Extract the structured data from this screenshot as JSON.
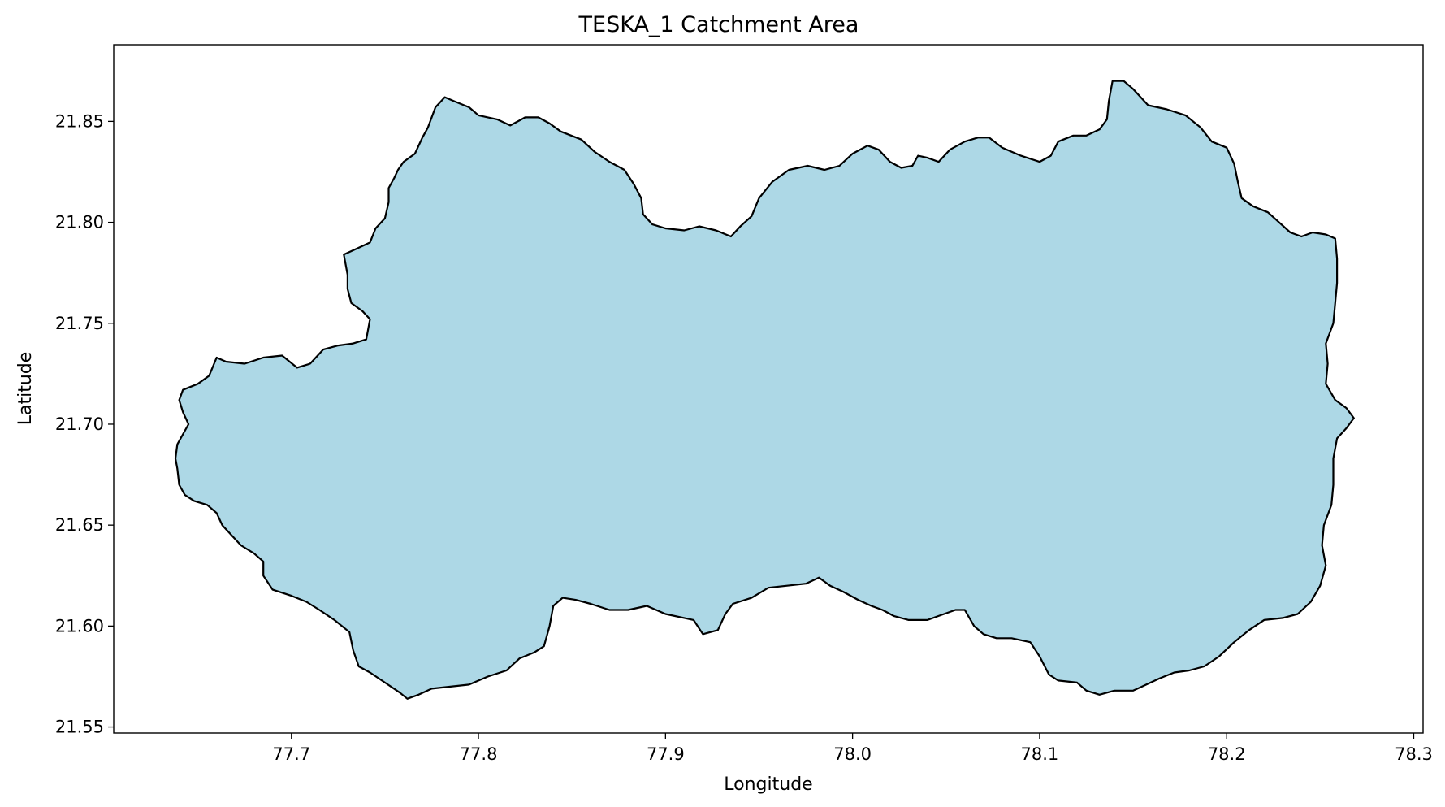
{
  "chart_data": {
    "type": "map",
    "title": "TESKA_1 Catchment Area",
    "xlabel": "Longitude",
    "ylabel": "Latitude",
    "xlim": [
      77.605,
      78.305
    ],
    "ylim": [
      21.547,
      21.888
    ],
    "xticks": [
      77.7,
      77.8,
      77.9,
      78.0,
      78.1,
      78.2,
      78.3
    ],
    "xtick_labels": [
      "77.7",
      "77.8",
      "77.9",
      "78.0",
      "78.1",
      "78.2",
      "78.3"
    ],
    "yticks": [
      21.55,
      21.6,
      21.65,
      21.7,
      21.75,
      21.8,
      21.85
    ],
    "ytick_labels": [
      "21.55",
      "21.60",
      "21.65",
      "21.70",
      "21.75",
      "21.80",
      "21.85"
    ],
    "grid": false,
    "fill_color": "#add8e6",
    "edge_color": "#000000",
    "polygon_lonlat": [
      [
        77.787,
        21.86
      ],
      [
        77.795,
        21.857
      ],
      [
        77.8,
        21.853
      ],
      [
        77.81,
        21.851
      ],
      [
        77.817,
        21.848
      ],
      [
        77.825,
        21.852
      ],
      [
        77.832,
        21.852
      ],
      [
        77.838,
        21.849
      ],
      [
        77.844,
        21.845
      ],
      [
        77.855,
        21.841
      ],
      [
        77.862,
        21.835
      ],
      [
        77.87,
        21.83
      ],
      [
        77.878,
        21.826
      ],
      [
        77.883,
        21.819
      ],
      [
        77.887,
        21.812
      ],
      [
        77.888,
        21.804
      ],
      [
        77.893,
        21.799
      ],
      [
        77.9,
        21.797
      ],
      [
        77.91,
        21.796
      ],
      [
        77.918,
        21.798
      ],
      [
        77.927,
        21.796
      ],
      [
        77.935,
        21.793
      ],
      [
        77.94,
        21.798
      ],
      [
        77.946,
        21.803
      ],
      [
        77.95,
        21.812
      ],
      [
        77.957,
        21.82
      ],
      [
        77.966,
        21.826
      ],
      [
        77.976,
        21.828
      ],
      [
        77.985,
        21.826
      ],
      [
        77.993,
        21.828
      ],
      [
        78.0,
        21.834
      ],
      [
        78.008,
        21.838
      ],
      [
        78.014,
        21.836
      ],
      [
        78.02,
        21.83
      ],
      [
        78.026,
        21.827
      ],
      [
        78.032,
        21.828
      ],
      [
        78.035,
        21.833
      ],
      [
        78.04,
        21.832
      ],
      [
        78.046,
        21.83
      ],
      [
        78.052,
        21.836
      ],
      [
        78.06,
        21.84
      ],
      [
        78.067,
        21.842
      ],
      [
        78.073,
        21.842
      ],
      [
        78.08,
        21.837
      ],
      [
        78.09,
        21.833
      ],
      [
        78.1,
        21.83
      ],
      [
        78.106,
        21.833
      ],
      [
        78.11,
        21.84
      ],
      [
        78.118,
        21.843
      ],
      [
        78.125,
        21.843
      ],
      [
        78.132,
        21.846
      ],
      [
        78.136,
        21.851
      ],
      [
        78.137,
        21.86
      ],
      [
        78.139,
        21.87
      ],
      [
        78.145,
        21.87
      ],
      [
        78.15,
        21.866
      ],
      [
        78.158,
        21.858
      ],
      [
        78.168,
        21.856
      ],
      [
        78.178,
        21.853
      ],
      [
        78.186,
        21.847
      ],
      [
        78.192,
        21.84
      ],
      [
        78.2,
        21.837
      ],
      [
        78.204,
        21.829
      ],
      [
        78.206,
        21.82
      ],
      [
        78.208,
        21.812
      ],
      [
        78.214,
        21.808
      ],
      [
        78.222,
        21.805
      ],
      [
        78.228,
        21.8
      ],
      [
        78.234,
        21.795
      ],
      [
        78.24,
        21.793
      ],
      [
        78.246,
        21.795
      ],
      [
        78.253,
        21.794
      ],
      [
        78.258,
        21.792
      ],
      [
        78.259,
        21.782
      ],
      [
        78.259,
        21.77
      ],
      [
        78.258,
        21.76
      ],
      [
        78.257,
        21.75
      ],
      [
        78.253,
        21.74
      ],
      [
        78.254,
        21.73
      ],
      [
        78.253,
        21.72
      ],
      [
        78.258,
        21.712
      ],
      [
        78.264,
        21.708
      ],
      [
        78.268,
        21.703
      ],
      [
        78.264,
        21.698
      ],
      [
        78.259,
        21.693
      ],
      [
        78.257,
        21.683
      ],
      [
        78.257,
        21.67
      ],
      [
        78.256,
        21.66
      ],
      [
        78.252,
        21.65
      ],
      [
        78.251,
        21.64
      ],
      [
        78.253,
        21.63
      ],
      [
        78.25,
        21.62
      ],
      [
        78.245,
        21.612
      ],
      [
        78.238,
        21.606
      ],
      [
        78.23,
        21.604
      ],
      [
        78.22,
        21.603
      ],
      [
        78.212,
        21.598
      ],
      [
        78.204,
        21.592
      ],
      [
        78.196,
        21.585
      ],
      [
        78.188,
        21.58
      ],
      [
        78.18,
        21.578
      ],
      [
        78.172,
        21.577
      ],
      [
        78.164,
        21.574
      ],
      [
        78.157,
        21.571
      ],
      [
        78.15,
        21.568
      ],
      [
        78.14,
        21.568
      ],
      [
        78.132,
        21.566
      ],
      [
        78.125,
        21.568
      ],
      [
        78.12,
        21.572
      ],
      [
        78.11,
        21.573
      ],
      [
        78.105,
        21.576
      ],
      [
        78.1,
        21.585
      ],
      [
        78.095,
        21.592
      ],
      [
        78.085,
        21.594
      ],
      [
        78.077,
        21.594
      ],
      [
        78.07,
        21.596
      ],
      [
        78.065,
        21.6
      ],
      [
        78.06,
        21.608
      ],
      [
        78.055,
        21.608
      ],
      [
        78.046,
        21.605
      ],
      [
        78.04,
        21.603
      ],
      [
        78.03,
        21.603
      ],
      [
        78.022,
        21.605
      ],
      [
        78.016,
        21.608
      ],
      [
        78.01,
        21.61
      ],
      [
        78.003,
        21.613
      ],
      [
        77.995,
        21.617
      ],
      [
        77.988,
        21.62
      ],
      [
        77.982,
        21.624
      ],
      [
        77.975,
        21.621
      ],
      [
        77.965,
        21.62
      ],
      [
        77.955,
        21.619
      ],
      [
        77.946,
        21.614
      ],
      [
        77.936,
        21.611
      ],
      [
        77.932,
        21.606
      ],
      [
        77.928,
        21.598
      ],
      [
        77.92,
        21.596
      ],
      [
        77.915,
        21.603
      ],
      [
        77.91,
        21.604
      ],
      [
        77.9,
        21.606
      ],
      [
        77.89,
        21.61
      ],
      [
        77.88,
        21.608
      ],
      [
        77.87,
        21.608
      ],
      [
        77.86,
        21.611
      ],
      [
        77.852,
        21.613
      ],
      [
        77.845,
        21.614
      ],
      [
        77.84,
        21.61
      ],
      [
        77.838,
        21.6
      ],
      [
        77.835,
        21.59
      ],
      [
        77.83,
        21.587
      ],
      [
        77.822,
        21.584
      ],
      [
        77.815,
        21.578
      ],
      [
        77.805,
        21.575
      ],
      [
        77.795,
        21.571
      ],
      [
        77.785,
        21.57
      ],
      [
        77.775,
        21.569
      ],
      [
        77.768,
        21.566
      ],
      [
        77.762,
        21.564
      ],
      [
        77.758,
        21.567
      ],
      [
        77.75,
        21.572
      ],
      [
        77.742,
        21.577
      ],
      [
        77.736,
        21.58
      ],
      [
        77.733,
        21.588
      ],
      [
        77.731,
        21.597
      ],
      [
        77.723,
        21.603
      ],
      [
        77.715,
        21.608
      ],
      [
        77.708,
        21.612
      ],
      [
        77.7,
        21.615
      ],
      [
        77.69,
        21.618
      ],
      [
        77.685,
        21.625
      ],
      [
        77.685,
        21.632
      ],
      [
        77.68,
        21.636
      ],
      [
        77.673,
        21.64
      ],
      [
        77.668,
        21.645
      ],
      [
        77.663,
        21.65
      ],
      [
        77.66,
        21.656
      ],
      [
        77.655,
        21.66
      ],
      [
        77.648,
        21.662
      ],
      [
        77.643,
        21.665
      ],
      [
        77.64,
        21.67
      ],
      [
        77.639,
        21.678
      ],
      [
        77.638,
        21.683
      ],
      [
        77.639,
        21.69
      ],
      [
        77.642,
        21.695
      ],
      [
        77.645,
        21.7
      ],
      [
        77.642,
        21.706
      ],
      [
        77.64,
        21.712
      ],
      [
        77.642,
        21.717
      ],
      [
        77.65,
        21.72
      ],
      [
        77.656,
        21.724
      ],
      [
        77.66,
        21.733
      ],
      [
        77.665,
        21.731
      ],
      [
        77.675,
        21.73
      ],
      [
        77.685,
        21.733
      ],
      [
        77.695,
        21.734
      ],
      [
        77.703,
        21.728
      ],
      [
        77.71,
        21.73
      ],
      [
        77.717,
        21.737
      ],
      [
        77.725,
        21.739
      ],
      [
        77.733,
        21.74
      ],
      [
        77.74,
        21.742
      ],
      [
        77.742,
        21.752
      ],
      [
        77.738,
        21.756
      ],
      [
        77.732,
        21.76
      ],
      [
        77.73,
        21.767
      ],
      [
        77.73,
        21.774
      ],
      [
        77.728,
        21.784
      ],
      [
        77.735,
        21.787
      ],
      [
        77.742,
        21.79
      ],
      [
        77.745,
        21.797
      ],
      [
        77.75,
        21.802
      ],
      [
        77.752,
        21.81
      ],
      [
        77.752,
        21.817
      ],
      [
        77.755,
        21.822
      ],
      [
        77.757,
        21.826
      ],
      [
        77.76,
        21.83
      ],
      [
        77.766,
        21.834
      ],
      [
        77.77,
        21.842
      ],
      [
        77.773,
        21.847
      ],
      [
        77.775,
        21.852
      ],
      [
        77.777,
        21.857
      ],
      [
        77.782,
        21.862
      ]
    ]
  }
}
